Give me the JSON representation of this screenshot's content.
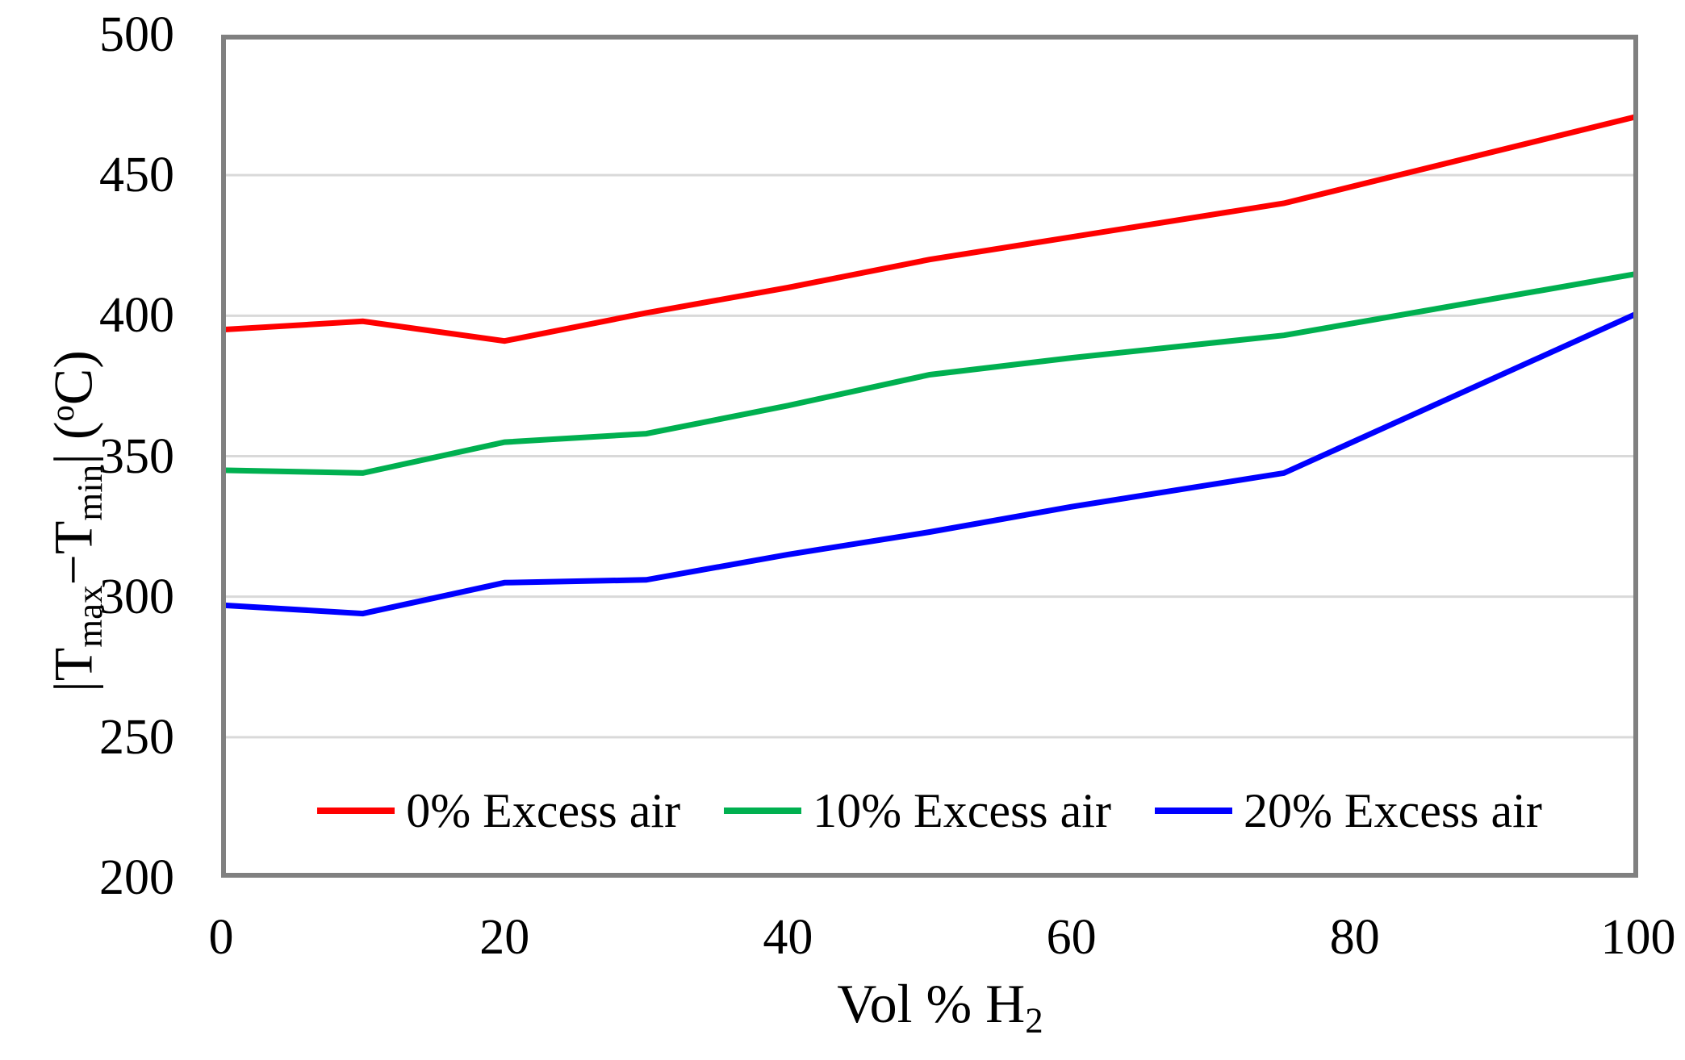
{
  "figure": {
    "background_color": "#ffffff",
    "axis_border_color": "#808080",
    "gridline_color": "#d9d9d9",
    "text_color": "#000000"
  },
  "chart_data": {
    "type": "line",
    "title": "",
    "x": [
      0,
      10,
      20,
      30,
      40,
      50,
      60,
      75,
      100
    ],
    "series": [
      {
        "name": "0% Excess air",
        "color": "#ff0000",
        "values": [
          395,
          398,
          391,
          401,
          410,
          420,
          428,
          440,
          471
        ]
      },
      {
        "name": "10% Excess air",
        "color": "#00b050",
        "values": [
          345,
          344,
          355,
          358,
          368,
          379,
          385,
          393,
          415
        ]
      },
      {
        "name": "20% Excess air",
        "color": "#0000ff",
        "values": [
          297,
          294,
          305,
          306,
          315,
          323,
          332,
          344,
          401
        ]
      }
    ],
    "xlabel_text": "Vol % H2",
    "xlabel_segments": [
      {
        "t": "Vol % H",
        "style": "normal"
      },
      {
        "t": "2",
        "style": "sub"
      }
    ],
    "ylabel_text": "|Tmax−Tmin| (°C)",
    "ylabel_segments": [
      {
        "t": "|T",
        "style": "normal"
      },
      {
        "t": "max",
        "style": "sub"
      },
      {
        "t": "−T",
        "style": "normal"
      },
      {
        "t": "min",
        "style": "sub"
      },
      {
        "t": "| (",
        "style": "normal"
      },
      {
        "t": "o",
        "style": "sup"
      },
      {
        "t": "C)",
        "style": "normal"
      }
    ],
    "x_ticks": [
      0,
      20,
      40,
      60,
      80,
      100
    ],
    "y_ticks": [
      500,
      450,
      400,
      350,
      300,
      250,
      200
    ],
    "xlim": [
      0,
      100
    ],
    "ylim": [
      200,
      500
    ],
    "grid": "horizontal",
    "legend_position": "bottom-center-inside"
  }
}
